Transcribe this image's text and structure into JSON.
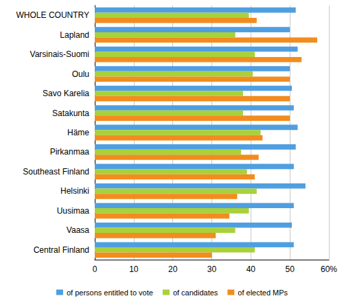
{
  "chart_data": {
    "type": "bar",
    "orientation": "horizontal",
    "categories": [
      "WHOLE COUNTRY",
      "Lapland",
      "Varsinais-Suomi",
      "Oulu",
      "Savo Karelia",
      "Satakunta",
      "Häme",
      "Pirkanmaa",
      "Southeast Finland",
      "Helsinki",
      "Uusimaa",
      "Vaasa",
      "Central Finland"
    ],
    "series": [
      {
        "name": "of persons entitled to vote",
        "color": "#4f9fe0",
        "values": [
          51.5,
          50,
          52,
          50,
          50.5,
          51,
          52,
          51.5,
          51,
          54,
          51,
          50.5,
          51
        ]
      },
      {
        "name": "of candidates",
        "color": "#a8d13a",
        "values": [
          39.5,
          36,
          41,
          40.5,
          38,
          38,
          42.5,
          37.5,
          39,
          41.5,
          39.5,
          36,
          41
        ]
      },
      {
        "name": "of elected MPs",
        "color": "#f28c1e",
        "values": [
          41.5,
          57,
          53,
          50,
          50,
          50,
          43,
          42,
          41,
          36.5,
          34.5,
          31,
          30
        ]
      }
    ],
    "xlim": [
      0,
      60
    ],
    "xticks": [
      0,
      10,
      20,
      30,
      40,
      50,
      {
        "value": 60,
        "label": "60%"
      }
    ],
    "grid": true,
    "legend": "bottom"
  }
}
